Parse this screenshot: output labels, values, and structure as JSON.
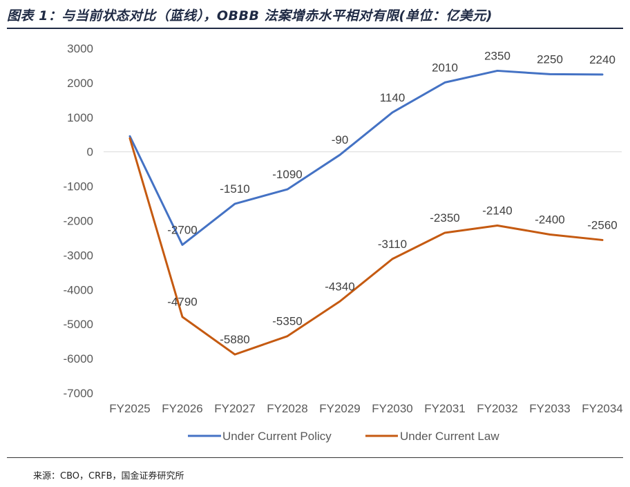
{
  "title": "图表 1：与当前状态对比（蓝线），OBBB 法案增赤水平相对有限(单位：亿美元)",
  "source": "来源：CBO，CRFB，国金证券研究所",
  "chart_data": {
    "type": "line",
    "categories": [
      "FY2025",
      "FY2026",
      "FY2027",
      "FY2028",
      "FY2029",
      "FY2030",
      "FY2031",
      "FY2032",
      "FY2033",
      "FY2034"
    ],
    "ylim": [
      -7000,
      3000
    ],
    "yticks": [
      3000,
      2000,
      1000,
      0,
      -1000,
      -2000,
      -3000,
      -4000,
      -5000,
      -6000,
      -7000
    ],
    "grid": false,
    "legend_position": "bottom",
    "series": [
      {
        "name": "Under Current Policy",
        "color": "#4472C4",
        "values": [
          450,
          -2700,
          -1510,
          -1090,
          -90,
          1140,
          2010,
          2350,
          2250,
          2240
        ],
        "labels": [
          "",
          "-2700",
          "-1510",
          "-1090",
          "-90",
          "1140",
          "2010",
          "2350",
          "2250",
          "2240"
        ]
      },
      {
        "name": "Under Current Law",
        "color": "#C55A11",
        "values": [
          390,
          -4790,
          -5880,
          -5350,
          -4340,
          -3110,
          -2350,
          -2140,
          -2400,
          -2560
        ],
        "labels": [
          "",
          "-4790",
          "-5880",
          "-5350",
          "-4340",
          "-3110",
          "-2350",
          "-2140",
          "-2400",
          "-2560"
        ]
      }
    ]
  }
}
